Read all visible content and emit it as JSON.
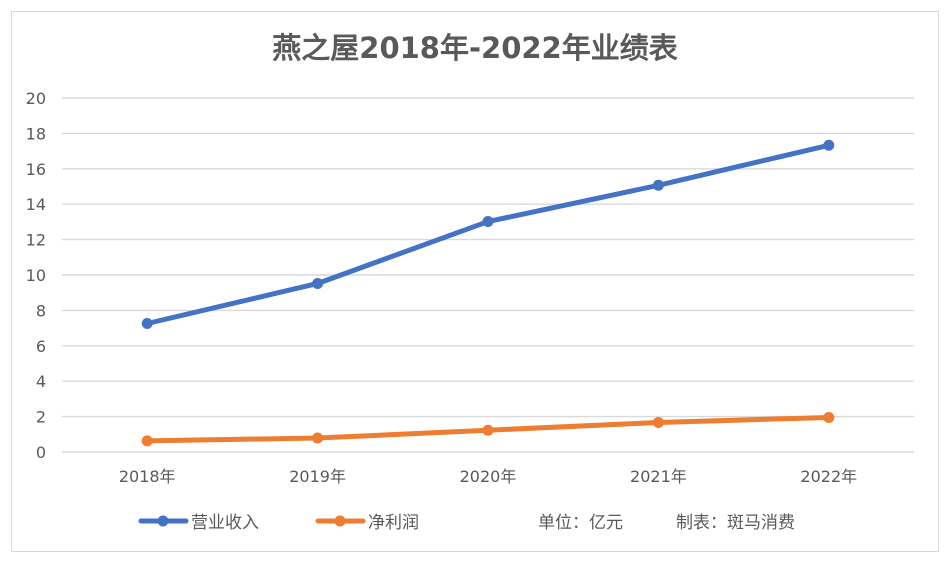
{
  "chart_data": {
    "type": "line",
    "title": "燕之屋2018年-2022年业绩表",
    "xlabel": "",
    "ylabel": "",
    "categories": [
      "2018年",
      "2019年",
      "2020年",
      "2021年",
      "2022年"
    ],
    "ylim": [
      0,
      20
    ],
    "yticks": [
      0,
      2,
      4,
      6,
      8,
      10,
      12,
      14,
      16,
      18,
      20
    ],
    "grid": true,
    "legend_position": "bottom",
    "series": [
      {
        "name": "营业收入",
        "color": "#4472c4",
        "values": [
          7.26,
          9.52,
          13.02,
          15.07,
          17.33
        ]
      },
      {
        "name": "净利润",
        "color": "#ed7d31",
        "values": [
          0.63,
          0.79,
          1.23,
          1.67,
          1.95
        ]
      }
    ],
    "annotations": [
      "单位：亿元",
      "制表：斑马消费"
    ]
  }
}
